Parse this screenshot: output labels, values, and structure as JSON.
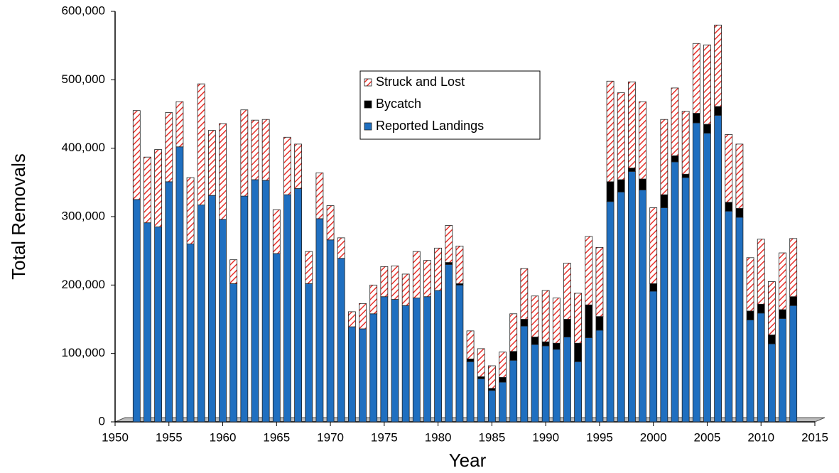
{
  "chart_data": {
    "type": "stacked_bar",
    "x_label": "Year",
    "y_label": "Total Removals",
    "x": [
      1952,
      1953,
      1954,
      1955,
      1956,
      1957,
      1958,
      1959,
      1960,
      1961,
      1962,
      1963,
      1964,
      1965,
      1966,
      1967,
      1968,
      1969,
      1970,
      1971,
      1972,
      1973,
      1974,
      1975,
      1976,
      1977,
      1978,
      1979,
      1980,
      1981,
      1982,
      1983,
      1984,
      1985,
      1986,
      1987,
      1988,
      1989,
      1990,
      1991,
      1992,
      1993,
      1994,
      1995,
      1996,
      1997,
      1998,
      1999,
      2000,
      2001,
      2002,
      2003,
      2004,
      2005,
      2006,
      2007,
      2008,
      2009,
      2010,
      2011,
      2012,
      2013
    ],
    "series": [
      {
        "name": "Reported Landings",
        "color": "#1f6fc0",
        "values": [
          325000,
          291000,
          285000,
          351000,
          402000,
          260000,
          317000,
          331000,
          296000,
          202000,
          330000,
          354000,
          353000,
          246000,
          332000,
          341000,
          202000,
          297000,
          266000,
          239000,
          139000,
          136000,
          158000,
          183000,
          179000,
          170000,
          181000,
          183000,
          192000,
          230000,
          200000,
          88000,
          63000,
          46000,
          58000,
          90000,
          140000,
          113000,
          111000,
          106000,
          124000,
          88000,
          123000,
          134000,
          322000,
          336000,
          366000,
          339000,
          191000,
          313000,
          380000,
          357000,
          437000,
          422000,
          448000,
          308000,
          299000,
          149000,
          159000,
          114000,
          151000,
          170000
        ]
      },
      {
        "name": "Bycatch",
        "color": "#000000",
        "values": [
          0,
          0,
          0,
          0,
          0,
          0,
          0,
          0,
          0,
          0,
          0,
          0,
          0,
          0,
          0,
          0,
          0,
          0,
          0,
          0,
          0,
          0,
          0,
          0,
          0,
          0,
          0,
          0,
          0,
          3000,
          2000,
          4000,
          3000,
          3000,
          7000,
          13000,
          10000,
          11000,
          6000,
          9000,
          26000,
          27000,
          48000,
          20000,
          29000,
          18000,
          5000,
          16000,
          11000,
          19000,
          9000,
          5000,
          14000,
          13000,
          13000,
          13000,
          13000,
          13000,
          13000,
          13000,
          13000,
          13000
        ]
      },
      {
        "name": "Struck and Lost",
        "color": "#e8302a",
        "values": [
          130000,
          96000,
          113000,
          101000,
          66000,
          97000,
          177000,
          95000,
          140000,
          35000,
          126000,
          87000,
          89000,
          64000,
          84000,
          65000,
          47000,
          67000,
          50000,
          30000,
          22000,
          37000,
          42000,
          44000,
          49000,
          46000,
          68000,
          53000,
          62000,
          54000,
          55000,
          41000,
          41000,
          33000,
          37000,
          55000,
          74000,
          60000,
          75000,
          66000,
          82000,
          73000,
          100000,
          101000,
          147000,
          127000,
          126000,
          113000,
          111000,
          110000,
          99000,
          92000,
          102000,
          116000,
          119000,
          99000,
          94000,
          78000,
          95000,
          78000,
          83000,
          85000
        ]
      }
    ],
    "xlim": [
      1950,
      2015
    ],
    "xticks": [
      1950,
      1955,
      1960,
      1965,
      1970,
      1975,
      1980,
      1985,
      1990,
      1995,
      2000,
      2005,
      2010,
      2015
    ],
    "ylim": [
      0,
      600000
    ],
    "yticks": [
      0,
      {
        "value": 100000,
        "label": "100,000"
      },
      {
        "value": 200000,
        "label": "200,000"
      },
      {
        "value": 300000,
        "label": "300,000"
      },
      {
        "value": 400000,
        "label": "400,000"
      },
      {
        "value": 500000,
        "label": "500,000"
      },
      {
        "value": 600000,
        "label": "600,000"
      }
    ],
    "grid": false,
    "legend_position": "top"
  }
}
